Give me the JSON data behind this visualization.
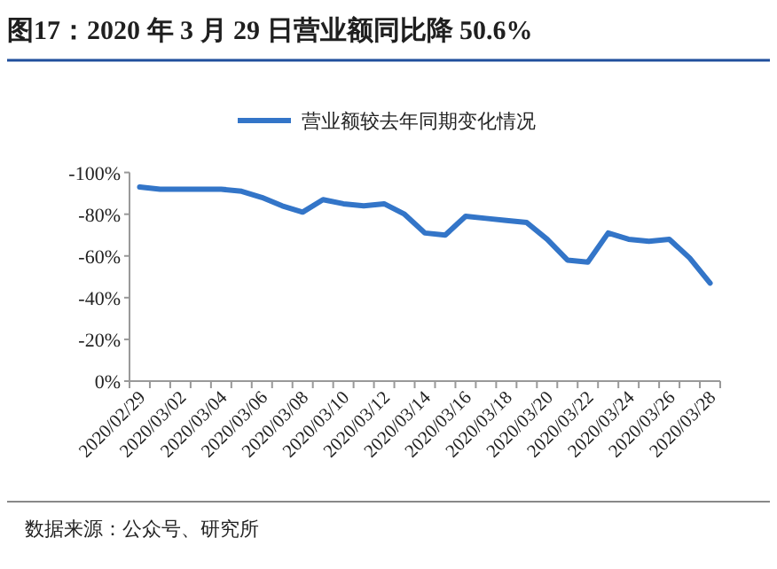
{
  "chart_data": {
    "type": "line",
    "title": "图17：2020 年 3 月 29 日营业额同比降 50.6%",
    "categories": [
      "2020/02/29",
      null,
      "2020/03/02",
      null,
      "2020/03/04",
      null,
      "2020/03/06",
      null,
      "2020/03/08",
      null,
      "2020/03/10",
      null,
      "2020/03/12",
      null,
      "2020/03/14",
      null,
      "2020/03/16",
      null,
      "2020/03/18",
      null,
      "2020/03/20",
      null,
      "2020/03/22",
      null,
      "2020/03/24",
      null,
      "2020/03/26",
      null,
      "2020/03/28"
    ],
    "series": [
      {
        "name": "营业额较去年同期变化情况",
        "color": "#3375c8",
        "values": [
          -93,
          -92,
          -92,
          -92,
          -92,
          -91,
          -88,
          -84,
          -81,
          -87,
          -85,
          -84,
          -85,
          -80,
          -71,
          -70,
          -79,
          -78,
          -77,
          -76,
          -68,
          -58,
          -57,
          -71,
          -68,
          -67,
          -68,
          -59,
          -47
        ]
      }
    ],
    "ylim": [
      0,
      -100
    ],
    "yticks": [
      {
        "value": -100,
        "label": "-100%"
      },
      {
        "value": -80,
        "label": "-80%"
      },
      {
        "value": -60,
        "label": "-60%"
      },
      {
        "value": -40,
        "label": "-40%"
      },
      {
        "value": -20,
        "label": "-20%"
      },
      {
        "value": 0,
        "label": "0%"
      }
    ],
    "grid": false,
    "legend": "top",
    "marker": "none",
    "line_style": "solid",
    "annotations": [
      "数据来源：公众号、研究所"
    ]
  }
}
